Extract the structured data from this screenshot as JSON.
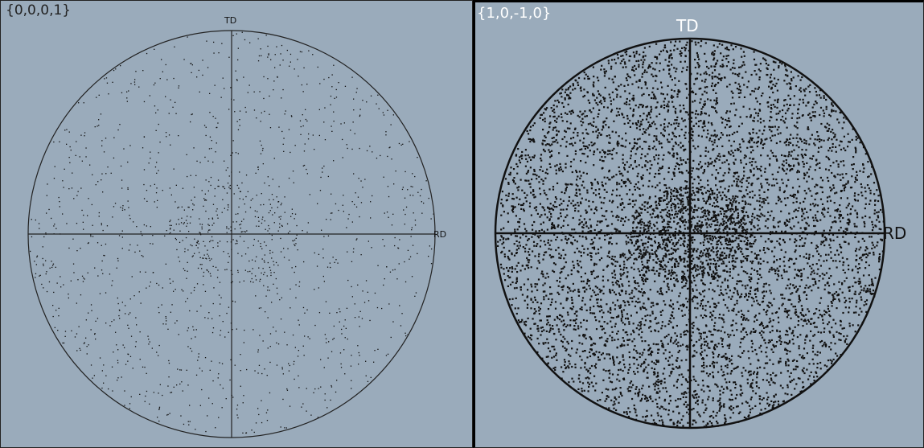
{
  "left_figure": {
    "plane_label": "{0,0,0,1}",
    "top_axis_label": "TD",
    "right_axis_label": "RD",
    "point_count": 1500
  },
  "right_figure": {
    "plane_label": "{1,0,-1,0}",
    "top_axis_label": "TD",
    "right_axis_label": "RD",
    "point_count": 6500
  },
  "colors": {
    "background": "#9aabbb",
    "points": "#111111",
    "lines": "#222222"
  }
}
